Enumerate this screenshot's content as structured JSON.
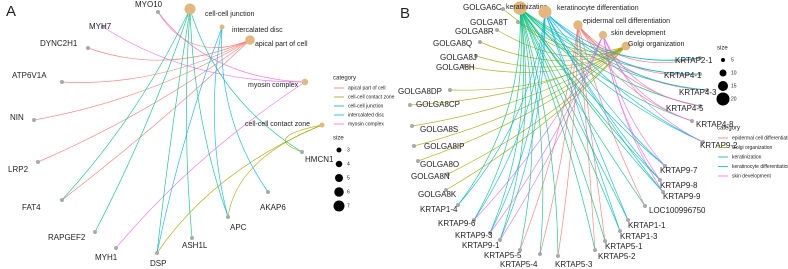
{
  "panels": [
    {
      "label": "A",
      "categories": [
        {
          "name": "apical part of cell",
          "color": "#F8766D",
          "size": 6
        },
        {
          "name": "cell-cell contact zone",
          "color": "#A3A500",
          "size": 3
        },
        {
          "name": "cell-cell junction",
          "color": "#00BF7D",
          "size": 7
        },
        {
          "name": "intercalated disc",
          "color": "#00B0F6",
          "size": 3
        },
        {
          "name": "myosin complex",
          "color": "#E76BF3",
          "size": 4
        }
      ],
      "genes": [
        {
          "name": "MYO10",
          "categories": [
            "myosin complex",
            "apical part of cell"
          ]
        },
        {
          "name": "MYH7",
          "categories": [
            "myosin complex"
          ]
        },
        {
          "name": "DYNC2H1",
          "categories": [
            "apical part of cell"
          ]
        },
        {
          "name": "ATP6V1A",
          "categories": [
            "apical part of cell"
          ]
        },
        {
          "name": "NIN",
          "categories": [
            "apical part of cell"
          ]
        },
        {
          "name": "LRP2",
          "categories": [
            "apical part of cell"
          ]
        },
        {
          "name": "FAT4",
          "categories": [
            "apical part of cell",
            "cell-cell junction"
          ]
        },
        {
          "name": "RAPGEF2",
          "categories": [
            "cell-cell junction"
          ]
        },
        {
          "name": "MYH1",
          "categories": [
            "myosin complex"
          ]
        },
        {
          "name": "DSP",
          "categories": [
            "cell-cell junction",
            "intercalated disc",
            "cell-cell contact zone"
          ]
        },
        {
          "name": "ASH1L",
          "categories": [
            "cell-cell junction"
          ]
        },
        {
          "name": "APC",
          "categories": [
            "cell-cell junction",
            "intercalated disc",
            "cell-cell contact zone"
          ]
        },
        {
          "name": "AKAP6",
          "categories": [
            "intercalated disc"
          ]
        },
        {
          "name": "HMCN1",
          "categories": [
            "cell-cell junction",
            "cell-cell contact zone"
          ]
        }
      ],
      "legend": {
        "category_title": "category",
        "size_title": "size",
        "size_ticks": [
          3,
          4,
          5,
          6,
          7
        ]
      }
    },
    {
      "label": "B",
      "categories": [
        {
          "name": "epidermal cell differentiation",
          "color": "#F8766D",
          "size": 14
        },
        {
          "name": "Golgi organization",
          "color": "#A3A500",
          "size": 13
        },
        {
          "name": "keratinization",
          "color": "#00BF7D",
          "size": 21
        },
        {
          "name": "keratinocyte differentiation",
          "color": "#00B0F6",
          "size": 20
        },
        {
          "name": "skin development",
          "color": "#E76BF3",
          "size": 12
        }
      ],
      "genes": [
        {
          "name": "GOLGA6C",
          "categories": [
            "Golgi organization"
          ]
        },
        {
          "name": "GOLGA8T",
          "categories": [
            "Golgi organization"
          ]
        },
        {
          "name": "GOLGA8R",
          "categories": [
            "Golgi organization"
          ]
        },
        {
          "name": "GOLGA8Q",
          "categories": [
            "Golgi organization"
          ]
        },
        {
          "name": "GOLGA8J",
          "categories": [
            "Golgi organization"
          ]
        },
        {
          "name": "GOLGA8H",
          "categories": [
            "Golgi organization"
          ]
        },
        {
          "name": "GOLGA8DP",
          "categories": [
            "Golgi organization"
          ]
        },
        {
          "name": "GOLGA8CP",
          "categories": [
            "Golgi organization"
          ]
        },
        {
          "name": "GOLGA8S",
          "categories": [
            "Golgi organization"
          ]
        },
        {
          "name": "GOLGA8IP",
          "categories": [
            "Golgi organization"
          ]
        },
        {
          "name": "GOLGA8O",
          "categories": [
            "Golgi organization"
          ]
        },
        {
          "name": "GOLGA8N",
          "categories": [
            "Golgi organization"
          ]
        },
        {
          "name": "GOLGA8K",
          "categories": [
            "Golgi organization"
          ]
        },
        {
          "name": "KRTAP1-4",
          "categories": [
            "keratinization",
            "keratinocyte differentiation"
          ]
        },
        {
          "name": "KRTAP9-6",
          "categories": [
            "keratinization",
            "keratinocyte differentiation",
            "skin development"
          ]
        },
        {
          "name": "KRTAP9-3",
          "categories": [
            "keratinization",
            "keratinocyte differentiation",
            "skin development"
          ]
        },
        {
          "name": "KRTAP9-1",
          "categories": [
            "keratinization",
            "keratinocyte differentiation",
            "skin development"
          ]
        },
        {
          "name": "KRTAP5-5",
          "categories": [
            "keratinization",
            "epidermal cell differentiation"
          ]
        },
        {
          "name": "KRTAP5-4",
          "categories": [
            "keratinization",
            "epidermal cell differentiation"
          ]
        },
        {
          "name": "KRTAP5-3",
          "categories": [
            "keratinization",
            "epidermal cell differentiation"
          ]
        },
        {
          "name": "KRTAP5-2",
          "categories": [
            "keratinization",
            "epidermal cell differentiation"
          ]
        },
        {
          "name": "KRTAP5-1",
          "categories": [
            "keratinization",
            "epidermal cell differentiation"
          ]
        },
        {
          "name": "KRTAP1-3",
          "categories": [
            "keratinization",
            "keratinocyte differentiation"
          ]
        },
        {
          "name": "KRTAP1-1",
          "categories": [
            "keratinization",
            "keratinocyte differentiation"
          ]
        },
        {
          "name": "LOC100996750",
          "categories": [
            "keratinization",
            "epidermal cell differentiation"
          ]
        },
        {
          "name": "KRTAP9-9",
          "categories": [
            "keratinization",
            "keratinocyte differentiation",
            "skin development"
          ]
        },
        {
          "name": "KRTAP9-8",
          "categories": [
            "keratinization",
            "keratinocyte differentiation",
            "skin development"
          ]
        },
        {
          "name": "KRTAP9-7",
          "categories": [
            "keratinization",
            "keratinocyte differentiation",
            "skin development"
          ]
        },
        {
          "name": "KRTAP9-2",
          "categories": [
            "keratinization",
            "keratinocyte differentiation",
            "skin development"
          ]
        },
        {
          "name": "KRTAP4-8",
          "categories": [
            "keratinization",
            "epidermal cell differentiation",
            "skin development"
          ]
        },
        {
          "name": "KRTAP4-5",
          "categories": [
            "keratinization",
            "epidermal cell differentiation",
            "skin development"
          ]
        },
        {
          "name": "KRTAP4-3",
          "categories": [
            "keratinization",
            "epidermal cell differentiation",
            "keratinocyte differentiation"
          ]
        },
        {
          "name": "KRTAP4-1",
          "categories": [
            "keratinization",
            "epidermal cell differentiation",
            "keratinocyte differentiation"
          ]
        },
        {
          "name": "KRTAP2-1",
          "categories": [
            "keratinization",
            "epidermal cell differentiation",
            "keratinocyte differentiation"
          ]
        }
      ],
      "legend": {
        "category_title": "category",
        "size_title": "size",
        "size_ticks": [
          5,
          10,
          15,
          20
        ]
      }
    }
  ]
}
